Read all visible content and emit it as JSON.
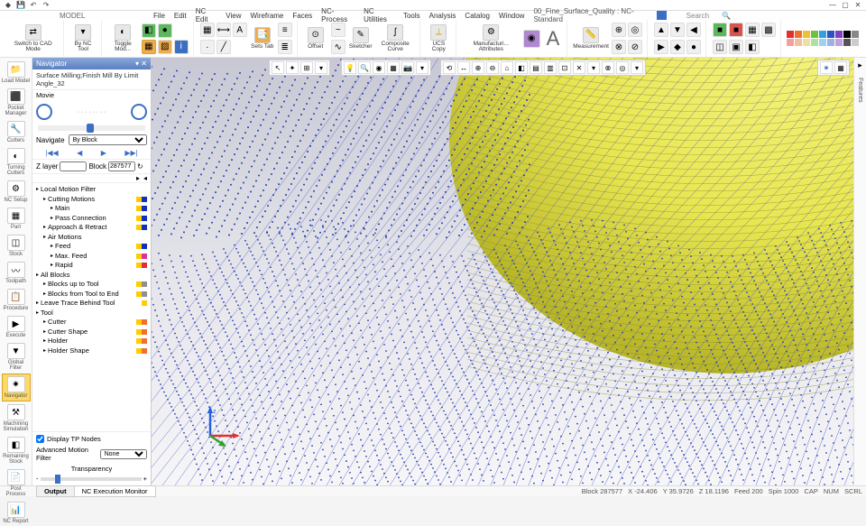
{
  "menus": [
    "File",
    "Edit",
    "NC Edit",
    "View",
    "Wireframe",
    "Faces",
    "NC-Process",
    "NC Utilities",
    "Tools",
    "Analysis",
    "Catalog",
    "Window"
  ],
  "filename": "00_Fine_Surface_Quality : NC-Standard",
  "search_ph": "Search",
  "model_label": "MODEL",
  "ribbon": {
    "switch_cad": "Switch to CAD\nMode",
    "by_nc": "By NC Tool",
    "toggle": "Toggle\nMod...",
    "setstab": "Sets Tab",
    "offset": "Offset",
    "sketcher": "Sketcher",
    "composite": "Composite\nCurve",
    "ucs": "UCS Copy",
    "manuf": "Manufacturi...\nAttributes",
    "measure": "Measurement"
  },
  "left": [
    {
      "lbl": "Load Model",
      "ico": "📁"
    },
    {
      "lbl": "Pocket\nManager",
      "ico": "⬛"
    },
    {
      "lbl": "Cutters",
      "ico": "🔧"
    },
    {
      "lbl": "Turning\nCutters",
      "ico": "◐"
    },
    {
      "lbl": "NC Setup",
      "ico": "⚙"
    },
    {
      "lbl": "Part",
      "ico": "▦"
    },
    {
      "lbl": "Stock",
      "ico": "◫"
    },
    {
      "lbl": "Toolpath",
      "ico": "〰"
    },
    {
      "lbl": "Procedure",
      "ico": "📋"
    },
    {
      "lbl": "Execute",
      "ico": "▶"
    },
    {
      "lbl": "Global Filter",
      "ico": "▼"
    },
    {
      "lbl": "Navigator",
      "ico": "✷",
      "active": true
    },
    {
      "lbl": "Machining\nSimulation",
      "ico": "⚒"
    },
    {
      "lbl": "Remaining\nStock",
      "ico": "◧"
    },
    {
      "lbl": "Post Process",
      "ico": "📄"
    },
    {
      "lbl": "NC Report",
      "ico": "📊"
    }
  ],
  "nav": {
    "header": "Navigator",
    "op_title": "Surface Milling;Finish Mill By Limit Angle_32",
    "movie": "Movie",
    "navigate": "Navigate",
    "byblock": "By Block",
    "zlayer": "Z layer",
    "block": "Block",
    "block_val": "287577",
    "tree": [
      {
        "lbl": "Local Motion Filter",
        "ind": 0,
        "sw": []
      },
      {
        "lbl": "Cutting Motions",
        "ind": 1,
        "sw": [
          "#ffcc00",
          "#1030c0"
        ]
      },
      {
        "lbl": "Main",
        "ind": 2,
        "sw": [
          "#ffcc00",
          "#1030c0"
        ]
      },
      {
        "lbl": "Pass Connection",
        "ind": 2,
        "sw": [
          "#ffcc00",
          "#1030c0"
        ]
      },
      {
        "lbl": "Approach & Retract",
        "ind": 1,
        "sw": [
          "#ffcc00",
          "#1030c0"
        ]
      },
      {
        "lbl": "Air Motions",
        "ind": 1,
        "sw": []
      },
      {
        "lbl": "Feed",
        "ind": 2,
        "sw": [
          "#ffcc00",
          "#1030c0"
        ]
      },
      {
        "lbl": "Max. Feed",
        "ind": 2,
        "sw": [
          "#ffcc00",
          "#e030a0"
        ]
      },
      {
        "lbl": "Rapid",
        "ind": 2,
        "sw": [
          "#ffcc00",
          "#e03030"
        ]
      },
      {
        "lbl": "All Blocks",
        "ind": 0,
        "sw": []
      },
      {
        "lbl": "Blocks up to Tool",
        "ind": 1,
        "sw": [
          "#ffcc00",
          "#909090"
        ]
      },
      {
        "lbl": "Blocks from Tool to End",
        "ind": 1,
        "sw": [
          "#ffcc00",
          "#909090"
        ]
      },
      {
        "lbl": "Leave Trace Behind Tool",
        "ind": 0,
        "sw": [
          "#ffcc00"
        ]
      },
      {
        "lbl": "Tool",
        "ind": 0,
        "sw": []
      },
      {
        "lbl": "Cutter",
        "ind": 1,
        "sw": [
          "#ffcc00",
          "#f07030"
        ]
      },
      {
        "lbl": "Cutter Shape",
        "ind": 1,
        "sw": [
          "#ffcc00",
          "#f07030"
        ]
      },
      {
        "lbl": "Holder",
        "ind": 1,
        "sw": [
          "#ffcc00",
          "#f07030"
        ]
      },
      {
        "lbl": "Holder Shape",
        "ind": 1,
        "sw": [
          "#ffcc00",
          "#f07030"
        ]
      }
    ],
    "display_tp": "Display TP Nodes",
    "adv_filter": "Advanced Motion Filter",
    "adv_val": "None",
    "transparency": "Transparency"
  },
  "tabs": {
    "output": "Output",
    "ncexec": "NC Execution Monitor"
  },
  "status": {
    "block": "Block 287577",
    "x": "X -24.406",
    "y": "Y 35.9726",
    "z": "Z 18.1196",
    "feed": "Feed 200",
    "spin": "Spin 1000",
    "cap": "CAP",
    "num": "NUM",
    "scrl": "SCRL"
  },
  "right_label": "Features",
  "colors": {
    "sphere_hi": "#f0ee6a",
    "sphere_lo": "#c0be30",
    "mesh": "#4a58c8",
    "dots": "#2840b0"
  }
}
